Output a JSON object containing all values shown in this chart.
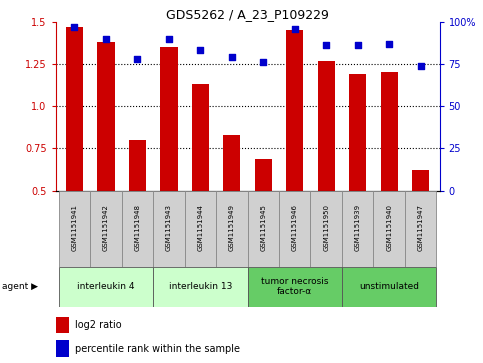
{
  "title": "GDS5262 / A_23_P109229",
  "samples": [
    "GSM1151941",
    "GSM1151942",
    "GSM1151948",
    "GSM1151943",
    "GSM1151944",
    "GSM1151949",
    "GSM1151945",
    "GSM1151946",
    "GSM1151950",
    "GSM1151939",
    "GSM1151940",
    "GSM1151947"
  ],
  "log2_ratio": [
    1.47,
    1.38,
    0.8,
    1.35,
    1.13,
    0.83,
    0.69,
    1.45,
    1.27,
    1.19,
    1.2,
    0.62
  ],
  "percentile": [
    97,
    90,
    78,
    90,
    83,
    79,
    76,
    96,
    86,
    86,
    87,
    74
  ],
  "agents": [
    {
      "label": "interleukin 4",
      "start": 0,
      "end": 3,
      "color": "#ccffcc"
    },
    {
      "label": "interleukin 13",
      "start": 3,
      "end": 6,
      "color": "#ccffcc"
    },
    {
      "label": "tumor necrosis\nfactor-α",
      "start": 6,
      "end": 9,
      "color": "#66cc66"
    },
    {
      "label": "unstimulated",
      "start": 9,
      "end": 12,
      "color": "#66cc66"
    }
  ],
  "ylim_left": [
    0.5,
    1.5
  ],
  "ylim_right": [
    0,
    100
  ],
  "yticks_left": [
    0.5,
    0.75,
    1.0,
    1.25,
    1.5
  ],
  "yticks_right": [
    0,
    25,
    50,
    75,
    100
  ],
  "bar_color": "#cc0000",
  "dot_color": "#0000cc",
  "bar_width": 0.55,
  "figsize": [
    4.83,
    3.63
  ],
  "dpi": 100
}
